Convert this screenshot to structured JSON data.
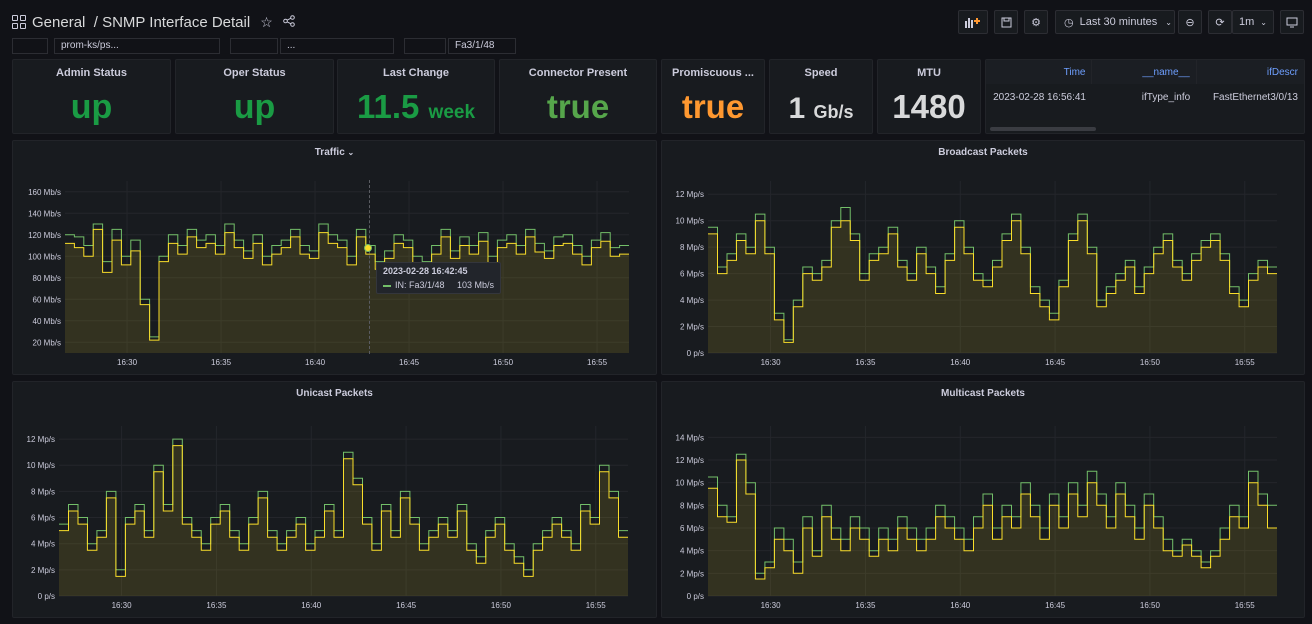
{
  "header": {
    "folder": "General",
    "separator": "/",
    "title": "SNMP Interface Detail",
    "time_range": "Last 30 minutes",
    "refresh": "1m"
  },
  "variables": [
    "",
    "prom-ks/ps...",
    "",
    "...",
    "",
    "Fa3/1/48"
  ],
  "stats": [
    {
      "title": "Admin Status",
      "value": "up",
      "unit": "",
      "color": "#1a9b44"
    },
    {
      "title": "Oper Status",
      "value": "up",
      "unit": "",
      "color": "#1a9b44"
    },
    {
      "title": "Last Change",
      "value": "11.5",
      "unit": "week",
      "color": "#1a9b44"
    },
    {
      "title": "Connector Present",
      "value": "true",
      "unit": "",
      "color": "#56a64b"
    },
    {
      "title": "Promiscuous ...",
      "value": "true",
      "unit": "",
      "color": "#ff9830"
    },
    {
      "title": "Speed",
      "value": "1",
      "unit": "Gb/s",
      "color": "#d8d9da"
    },
    {
      "title": "MTU",
      "value": "1480",
      "unit": "",
      "color": "#d8d9da"
    }
  ],
  "info_table": {
    "columns": [
      "Time",
      "__name__",
      "ifDescr"
    ],
    "rows": [
      [
        "2023-02-28 16:56:41",
        "ifType_info",
        "FastEthernet3/0/13"
      ]
    ]
  },
  "tooltip": {
    "time": "2023-02-28 16:42:45",
    "series": "IN: Fa3/1/48",
    "value": "103 Mb/s"
  },
  "colors": {
    "in": "#73bf69",
    "out": "#fade2a"
  },
  "chart_data": [
    {
      "type": "line",
      "title": "Traffic",
      "x_ticks": [
        "16:30",
        "16:35",
        "16:40",
        "16:45",
        "16:50",
        "16:55"
      ],
      "y_ticks": [
        "20 Mb/s",
        "40 Mb/s",
        "60 Mb/s",
        "80 Mb/s",
        "100 Mb/s",
        "120 Mb/s",
        "140 Mb/s",
        "160 Mb/s"
      ],
      "ylim": [
        10,
        170
      ],
      "xlim": [
        26.7,
        56.7
      ],
      "series": [
        {
          "values": [
            120,
            118,
            110,
            130,
            95,
            125,
            100,
            115,
            60,
            25,
            100,
            120,
            110,
            125,
            115,
            120,
            110,
            130,
            115,
            105,
            120,
            100,
            110,
            115,
            125,
            110,
            105,
            130,
            120,
            115,
            100,
            125,
            110,
            95,
            105,
            120,
            115,
            100,
            95,
            110,
            125,
            105,
            118,
            110,
            122,
            100,
            115,
            120,
            110,
            125,
            112,
            105,
            118,
            120,
            110,
            100,
            115,
            122,
            108,
            110
          ]
        },
        {
          "values": [
            112,
            108,
            100,
            125,
            85,
            115,
            92,
            105,
            55,
            22,
            95,
            112,
            102,
            118,
            108,
            112,
            102,
            122,
            108,
            98,
            112,
            92,
            102,
            108,
            118,
            102,
            98,
            122,
            112,
            108,
            92,
            118,
            102,
            88,
            98,
            112,
            108,
            92,
            88,
            102,
            118,
            98,
            110,
            102,
            114,
            92,
            108,
            112,
            102,
            118,
            104,
            98,
            110,
            112,
            102,
            92,
            108,
            114,
            100,
            102
          ]
        }
      ]
    },
    {
      "type": "line",
      "title": "Broadcast Packets",
      "x_ticks": [
        "16:30",
        "16:35",
        "16:40",
        "16:45",
        "16:50",
        "16:55"
      ],
      "y_ticks": [
        "0 p/s",
        "2 Mp/s",
        "4 Mp/s",
        "6 Mp/s",
        "8 Mp/s",
        "10 Mp/s",
        "12 Mp/s"
      ],
      "ylim": [
        0,
        13
      ],
      "xlim": [
        26.7,
        56.7
      ],
      "series": [
        {
          "values": [
            9.5,
            6.5,
            7.5,
            9,
            8,
            10.5,
            8,
            3,
            1,
            4,
            6.5,
            6,
            7,
            10,
            11,
            9,
            6,
            7.5,
            8,
            9.5,
            7,
            6,
            8,
            6.5,
            5,
            7.5,
            10,
            8,
            6,
            5.5,
            7,
            9,
            10.5,
            8,
            5,
            4,
            3,
            5.5,
            9,
            10.5,
            8,
            4,
            5,
            6,
            7,
            5,
            6.5,
            8,
            9,
            7,
            6,
            7.5,
            8.5,
            9,
            7.5,
            5,
            4,
            6,
            7,
            6.5
          ]
        },
        {
          "values": [
            9,
            6,
            7,
            8.5,
            7.5,
            10,
            7.5,
            2.5,
            0.8,
            3.5,
            6,
            5.5,
            6.5,
            9.5,
            10,
            8.5,
            5.5,
            7,
            7.5,
            9,
            6.5,
            5.5,
            7.5,
            6,
            4.5,
            7,
            9.5,
            7.5,
            5.5,
            5,
            6.5,
            8.5,
            10,
            7.5,
            4.5,
            3.5,
            2.5,
            5,
            8.5,
            10,
            7.5,
            3.5,
            4.5,
            5.5,
            6.5,
            4.5,
            6,
            7.5,
            8.5,
            6.5,
            5.5,
            7,
            8,
            8.5,
            7,
            4.5,
            3.5,
            5.5,
            6.5,
            6
          ]
        }
      ]
    },
    {
      "type": "line",
      "title": "Unicast Packets",
      "x_ticks": [
        "16:30",
        "16:35",
        "16:40",
        "16:45",
        "16:50",
        "16:55"
      ],
      "y_ticks": [
        "0 p/s",
        "2 Mp/s",
        "4 Mp/s",
        "6 Mp/s",
        "8 Mp/s",
        "10 Mp/s",
        "12 Mp/s"
      ],
      "ylim": [
        0,
        13
      ],
      "xlim": [
        26.7,
        56.7
      ],
      "series": [
        {
          "values": [
            5.5,
            7,
            6,
            4,
            5,
            8,
            2,
            6,
            7,
            5,
            10,
            7,
            12,
            6,
            5,
            4,
            6,
            7,
            5,
            4,
            6,
            8,
            5,
            4,
            5,
            6,
            4,
            5,
            7,
            5,
            11,
            9,
            6,
            4,
            7,
            5,
            8,
            6,
            4,
            5,
            6,
            5,
            7,
            4,
            3,
            5,
            6,
            4,
            3,
            2,
            4,
            5,
            6,
            5,
            4,
            7,
            6,
            10,
            8,
            5
          ]
        },
        {
          "values": [
            5,
            6.5,
            5.5,
            3.5,
            4.5,
            7.5,
            1.5,
            5.5,
            6.5,
            4.5,
            9.5,
            6.5,
            11.5,
            5.5,
            4.5,
            3.5,
            5.5,
            6.5,
            4.5,
            3.5,
            5.5,
            7.5,
            4.5,
            3.5,
            4.5,
            5.5,
            3.5,
            4.5,
            6.5,
            4.5,
            10.5,
            8.5,
            5.5,
            3.5,
            6.5,
            4.5,
            7.5,
            5.5,
            3.5,
            4.5,
            5.5,
            4.5,
            6.5,
            3.5,
            2.5,
            4.5,
            5.5,
            3.5,
            2.5,
            1.5,
            3.5,
            4.5,
            5.5,
            4.5,
            3.5,
            6.5,
            5.5,
            9.5,
            7.5,
            4.5
          ]
        }
      ]
    },
    {
      "type": "line",
      "title": "Multicast Packets",
      "x_ticks": [
        "16:30",
        "16:35",
        "16:40",
        "16:45",
        "16:50",
        "16:55"
      ],
      "y_ticks": [
        "0 p/s",
        "2 Mp/s",
        "4 Mp/s",
        "6 Mp/s",
        "8 Mp/s",
        "10 Mp/s",
        "12 Mp/s",
        "14 Mp/s"
      ],
      "ylim": [
        0,
        15
      ],
      "xlim": [
        26.7,
        56.7
      ],
      "series": [
        {
          "values": [
            10.5,
            8,
            7,
            12.5,
            10,
            2,
            3,
            6,
            5,
            3,
            7,
            4,
            8,
            6,
            5,
            7,
            6,
            4,
            6,
            5,
            7,
            6,
            5,
            6,
            8,
            7,
            6,
            5,
            7,
            9,
            6,
            8,
            7,
            10,
            8,
            6,
            9,
            7,
            10,
            8,
            11,
            9,
            7,
            10,
            8,
            6,
            9,
            7,
            5,
            4,
            5,
            4,
            3,
            4,
            6,
            8,
            7,
            11,
            9,
            8
          ]
        },
        {
          "values": [
            9.5,
            7,
            6.5,
            12,
            9,
            1.5,
            2.5,
            5,
            4,
            2,
            6,
            3.5,
            7,
            5,
            4,
            6,
            5,
            3.5,
            5,
            4,
            6,
            5,
            4,
            5,
            7,
            6,
            5,
            4,
            6,
            8,
            5,
            7,
            6,
            9,
            7,
            5,
            8,
            6,
            9,
            7,
            10,
            8,
            6,
            9,
            7,
            5,
            8,
            6,
            4,
            3.5,
            4.5,
            3.5,
            2.5,
            3.5,
            5,
            7,
            6,
            10,
            8,
            6
          ]
        }
      ]
    }
  ]
}
